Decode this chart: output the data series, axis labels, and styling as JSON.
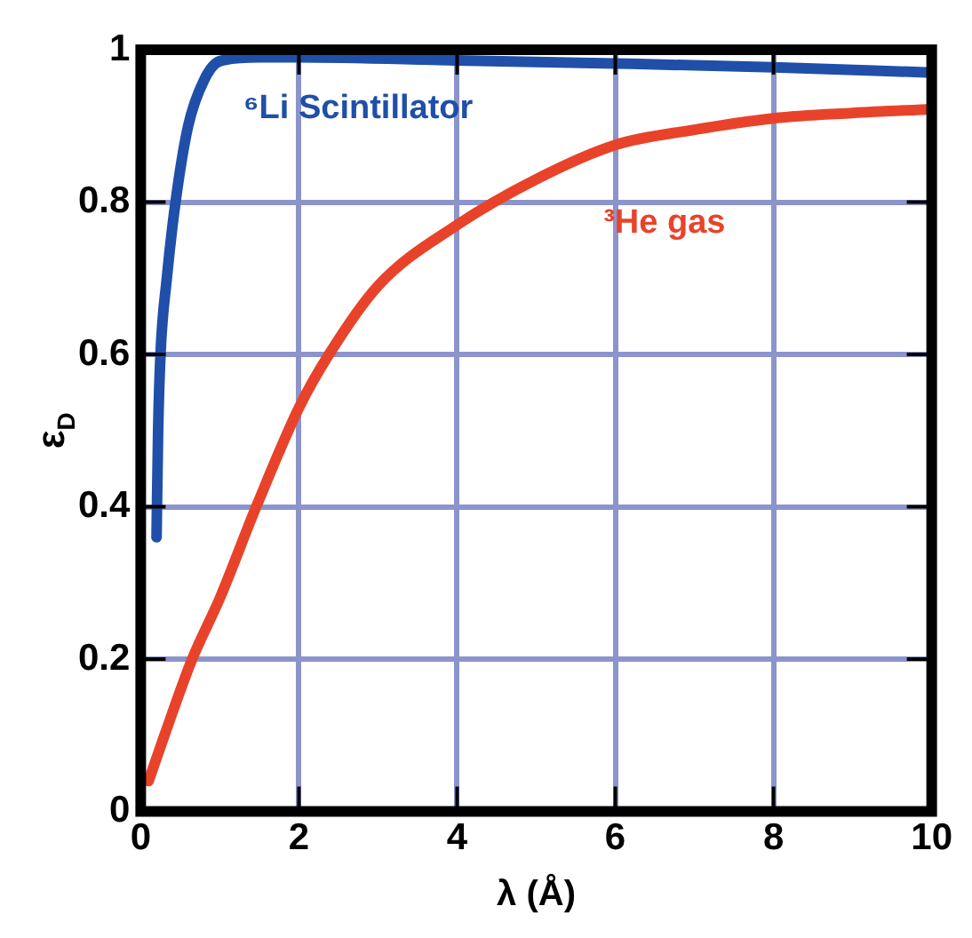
{
  "chart_data": {
    "type": "line",
    "xlabel": "λ (Å)",
    "ylabel": "ε$_{D}$",
    "xlim": [
      0,
      10
    ],
    "ylim": [
      0,
      1
    ],
    "xticks": [
      0,
      2,
      4,
      6,
      8,
      10
    ],
    "yticks": [
      0,
      0.2,
      0.4,
      0.6,
      0.8,
      1
    ],
    "grid": true,
    "legend": false,
    "marker": "none",
    "line_style": "solid",
    "series": [
      {
        "name": "⁶Li Scintillator",
        "color": "#1f4fa8",
        "x": [
          0.2,
          0.22,
          0.25,
          0.33,
          0.44,
          0.6,
          0.8,
          1,
          1.5,
          2,
          4,
          6,
          8,
          10
        ],
        "values": [
          0.36,
          0.5,
          0.6,
          0.7,
          0.8,
          0.9,
          0.96,
          0.985,
          0.99,
          0.99,
          0.986,
          0.982,
          0.977,
          0.97
        ]
      },
      {
        "name": "³He gas",
        "color": "#e8432a",
        "x": [
          0.1,
          0.3,
          0.65,
          1,
          1.46,
          2,
          2.38,
          3,
          4,
          5,
          6,
          7,
          8,
          9,
          10
        ],
        "values": [
          0.04,
          0.1,
          0.2,
          0.28,
          0.4,
          0.53,
          0.6,
          0.69,
          0.77,
          0.83,
          0.875,
          0.895,
          0.91,
          0.917,
          0.922
        ]
      }
    ]
  }
}
